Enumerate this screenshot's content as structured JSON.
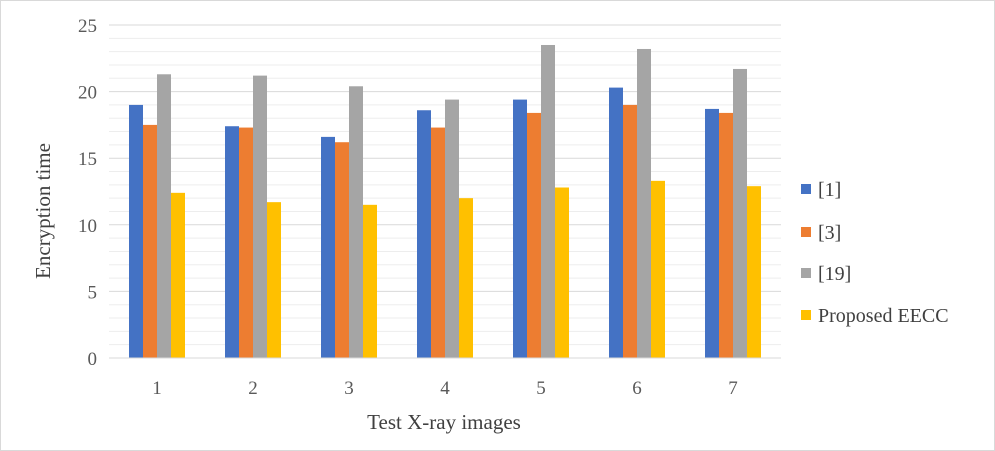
{
  "chart_data": {
    "type": "bar",
    "xlabel": "Test X-ray images",
    "ylabel": "Encryption time",
    "categories": [
      "1",
      "2",
      "3",
      "4",
      "5",
      "6",
      "7"
    ],
    "ylim": [
      0,
      25
    ],
    "yticks": [
      0,
      5,
      10,
      15,
      20,
      25
    ],
    "grid": true,
    "legend_position": "right",
    "series": [
      {
        "name": "[1]",
        "color": "#4472c4",
        "values": [
          19.0,
          17.4,
          16.6,
          18.6,
          19.4,
          20.3,
          18.7
        ]
      },
      {
        "name": "[3]",
        "color": "#ed7d31",
        "values": [
          17.5,
          17.3,
          16.2,
          17.3,
          18.4,
          19.0,
          18.4
        ]
      },
      {
        "name": "[19]",
        "color": "#a5a5a5",
        "values": [
          21.3,
          21.2,
          20.4,
          19.4,
          23.5,
          23.2,
          21.7
        ]
      },
      {
        "name": "Proposed EECC",
        "color": "#ffc000",
        "values": [
          12.4,
          11.7,
          11.5,
          12.0,
          12.8,
          13.3,
          12.9
        ]
      }
    ]
  }
}
